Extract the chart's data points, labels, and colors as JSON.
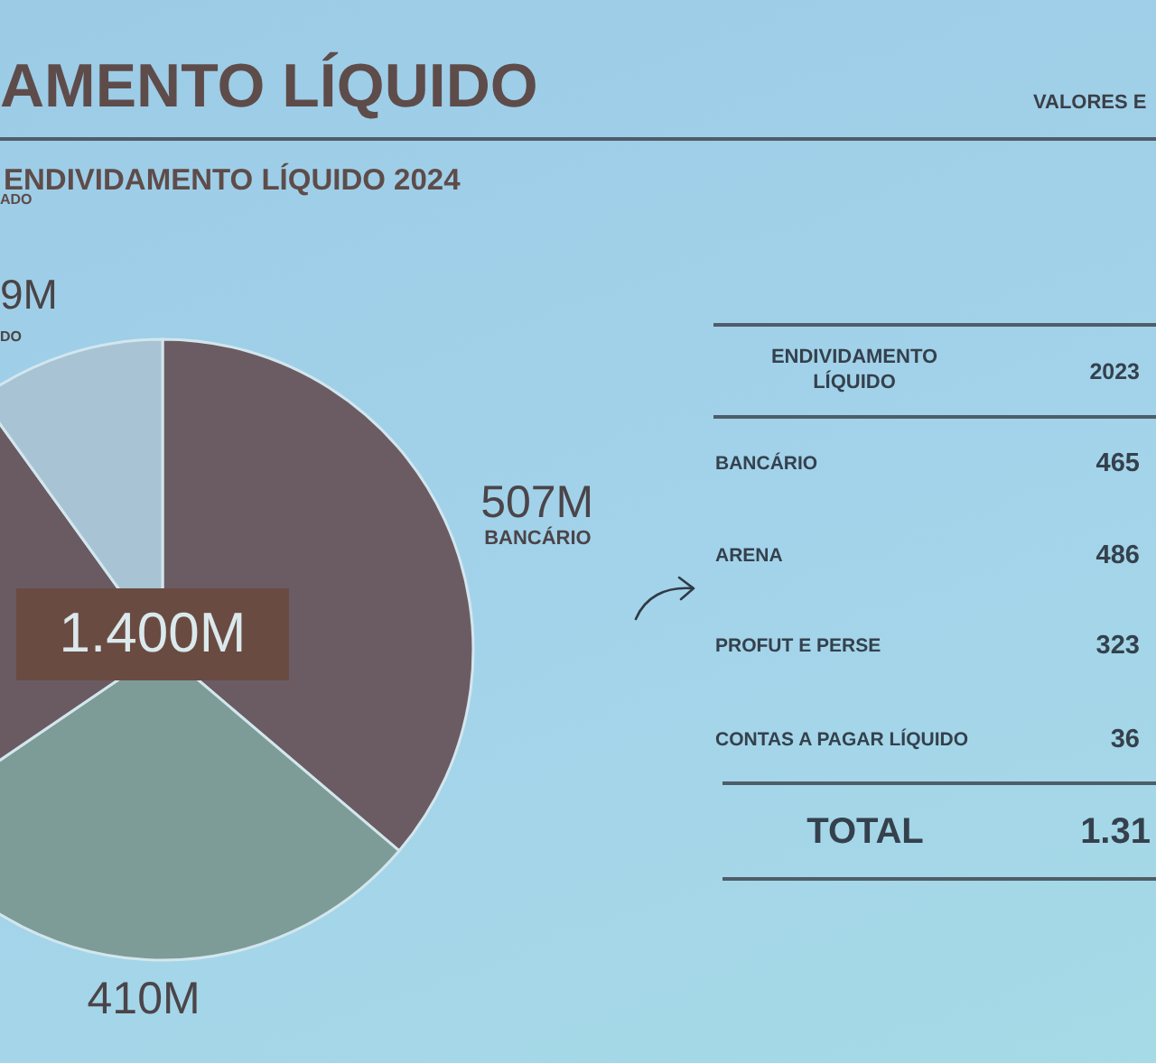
{
  "chart_data": [
    {
      "type": "pie",
      "title": "AMENTO LÍQUIDO",
      "subtitle": "ENDIVIDAMENTO LÍQUIDO 2024",
      "categories": [
        "BANCÁRIO",
        null,
        null,
        null
      ],
      "values": [
        507,
        410,
        344,
        139
      ],
      "colors": [
        "#6b5c64",
        "#7d9b97",
        "#6a5b63",
        "#a8c4d4"
      ],
      "value_labels": [
        "507M",
        "410M",
        null,
        null
      ],
      "annotations": [
        "VALORES E",
        "ADO",
        "9M",
        "DO",
        "1.400M"
      ]
    },
    {
      "type": "other",
      "title": "ENDIVIDAMENTO LÍQUIDO",
      "categories": [
        "BANCÁRIO",
        "ARENA",
        "PROFUT E PERSE",
        "CONTAS A PAGAR LÍQUIDO"
      ],
      "series": [
        {
          "name": "2023",
          "values": [
            465,
            486,
            323,
            36
          ]
        }
      ],
      "data_labels": true,
      "annotations": [
        "TOTAL",
        "1.31"
      ]
    }
  ]
}
